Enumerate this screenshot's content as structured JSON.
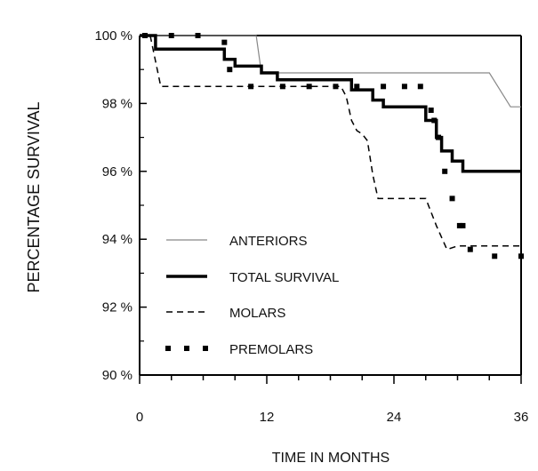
{
  "chart_data": {
    "type": "line",
    "xlabel": "TIME  IN  MONTHS",
    "ylabel": "PERCENTAGE   SURVIVAL",
    "xlim": [
      0,
      36
    ],
    "ylim": [
      90,
      100
    ],
    "x_ticks": [
      0,
      12,
      24,
      36
    ],
    "x_tick_labels": [
      "0",
      "12",
      "24",
      "36"
    ],
    "y_ticks": [
      90,
      92,
      94,
      96,
      98,
      100
    ],
    "y_tick_labels": [
      "90 %",
      "92 %",
      "94 %",
      "96 %",
      "98 %",
      "100 %"
    ],
    "legend_position": "lower-left",
    "series": [
      {
        "name": "ANTERIORS",
        "style": "thin",
        "color": "#888888",
        "points": [
          [
            0,
            100
          ],
          [
            11,
            100
          ],
          [
            11.5,
            98.9
          ],
          [
            33,
            98.9
          ],
          [
            35,
            97.9
          ],
          [
            36,
            97.9
          ]
        ]
      },
      {
        "name": "TOTAL SURVIVAL",
        "style": "thick",
        "color": "#000000",
        "points": [
          [
            0,
            100
          ],
          [
            1.5,
            100
          ],
          [
            1.5,
            99.6
          ],
          [
            8,
            99.6
          ],
          [
            8,
            99.3
          ],
          [
            9,
            99.3
          ],
          [
            9,
            99.1
          ],
          [
            11.5,
            99.1
          ],
          [
            11.5,
            98.9
          ],
          [
            13,
            98.9
          ],
          [
            13,
            98.7
          ],
          [
            20,
            98.7
          ],
          [
            20,
            98.4
          ],
          [
            22,
            98.4
          ],
          [
            22,
            98.1
          ],
          [
            23,
            98.1
          ],
          [
            23,
            97.9
          ],
          [
            27,
            97.9
          ],
          [
            27,
            97.5
          ],
          [
            28,
            97.5
          ],
          [
            28,
            97
          ],
          [
            28.5,
            97
          ],
          [
            28.5,
            96.6
          ],
          [
            29.5,
            96.6
          ],
          [
            29.5,
            96.3
          ],
          [
            30.5,
            96.3
          ],
          [
            30.5,
            96
          ],
          [
            36,
            96
          ]
        ]
      },
      {
        "name": "MOLARS",
        "style": "dashed",
        "color": "#000000",
        "points": [
          [
            0,
            100
          ],
          [
            1,
            100
          ],
          [
            2,
            98.5
          ],
          [
            19,
            98.5
          ],
          [
            19.5,
            98.2
          ],
          [
            20,
            97.5
          ],
          [
            20.5,
            97.2
          ],
          [
            21,
            97.1
          ],
          [
            21.5,
            96.9
          ],
          [
            22,
            95.9
          ],
          [
            22.5,
            95.2
          ],
          [
            27,
            95.2
          ],
          [
            28,
            94.4
          ],
          [
            29,
            93.7
          ],
          [
            30,
            93.8
          ],
          [
            36,
            93.8
          ]
        ]
      },
      {
        "name": "PREMOLARS",
        "style": "square-dotted",
        "color": "#000000",
        "points": [
          [
            0.5,
            100
          ],
          [
            3,
            100
          ],
          [
            5.5,
            100
          ],
          [
            8,
            99.8
          ],
          [
            8.5,
            99
          ],
          [
            10.5,
            98.5
          ],
          [
            13.5,
            98.5
          ],
          [
            16,
            98.5
          ],
          [
            18.5,
            98.5
          ],
          [
            20.5,
            98.5
          ],
          [
            23,
            98.5
          ],
          [
            25,
            98.5
          ],
          [
            26.5,
            98.5
          ],
          [
            27.5,
            97.8
          ],
          [
            27.8,
            97.5
          ],
          [
            28.2,
            97
          ],
          [
            28.8,
            96
          ],
          [
            29.5,
            95.2
          ],
          [
            30.2,
            94.4
          ],
          [
            30.5,
            94.4
          ],
          [
            31.2,
            93.7
          ],
          [
            33.5,
            93.5
          ],
          [
            36,
            93.5
          ]
        ]
      }
    ]
  }
}
